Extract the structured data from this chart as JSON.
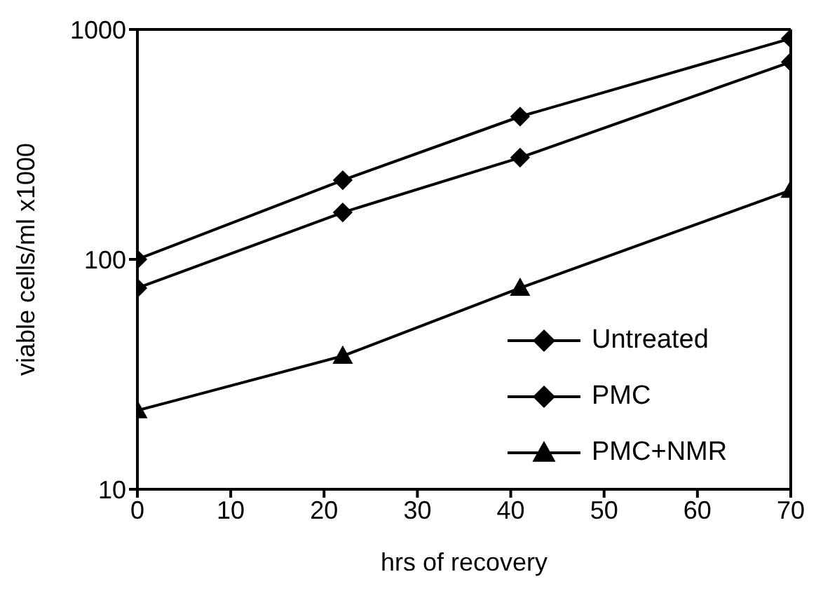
{
  "chart_data": {
    "type": "line",
    "xlabel": "hrs of recovery",
    "ylabel": "viable cells/ml x1000",
    "x": [
      0,
      22,
      41,
      70
    ],
    "xlim": [
      0,
      70
    ],
    "xticks": [
      0,
      10,
      20,
      30,
      40,
      50,
      60,
      70
    ],
    "ylim": [
      10,
      1000
    ],
    "yticks": [
      10,
      100,
      1000
    ],
    "log": "y",
    "grid": false,
    "legend": "bottom right",
    "line_style": "solid",
    "series": [
      {
        "name": "Untreated",
        "color": "#000000",
        "marker": "diamond",
        "values": [
          100,
          221,
          418,
          913
        ]
      },
      {
        "name": "PMC",
        "color": "#000000",
        "marker": "diamond",
        "values": [
          75,
          160,
          277,
          722
        ]
      },
      {
        "name": "PMC+NMR",
        "color": "#000000",
        "marker": "triangle",
        "values": [
          22,
          38,
          75,
          200
        ]
      }
    ]
  }
}
